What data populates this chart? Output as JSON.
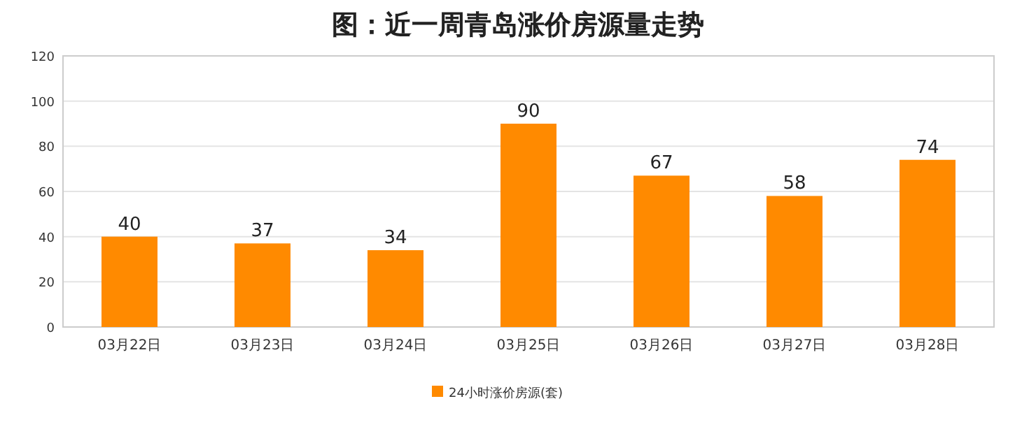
{
  "chart_data": {
    "type": "bar",
    "title": "图：近一周青岛涨价房源量走势",
    "categories": [
      "03月22日",
      "03月23日",
      "03月24日",
      "03月25日",
      "03月26日",
      "03月27日",
      "03月28日"
    ],
    "series": [
      {
        "name": "24小时涨价房源(套)",
        "color": "#ff8a00",
        "values": [
          40,
          37,
          34,
          90,
          67,
          58,
          74
        ]
      }
    ],
    "ylim": [
      0,
      120
    ],
    "yticks": [
      0,
      20,
      40,
      60,
      80,
      100,
      120
    ],
    "grid": "y",
    "legend": "bottom",
    "data_labels": true
  }
}
